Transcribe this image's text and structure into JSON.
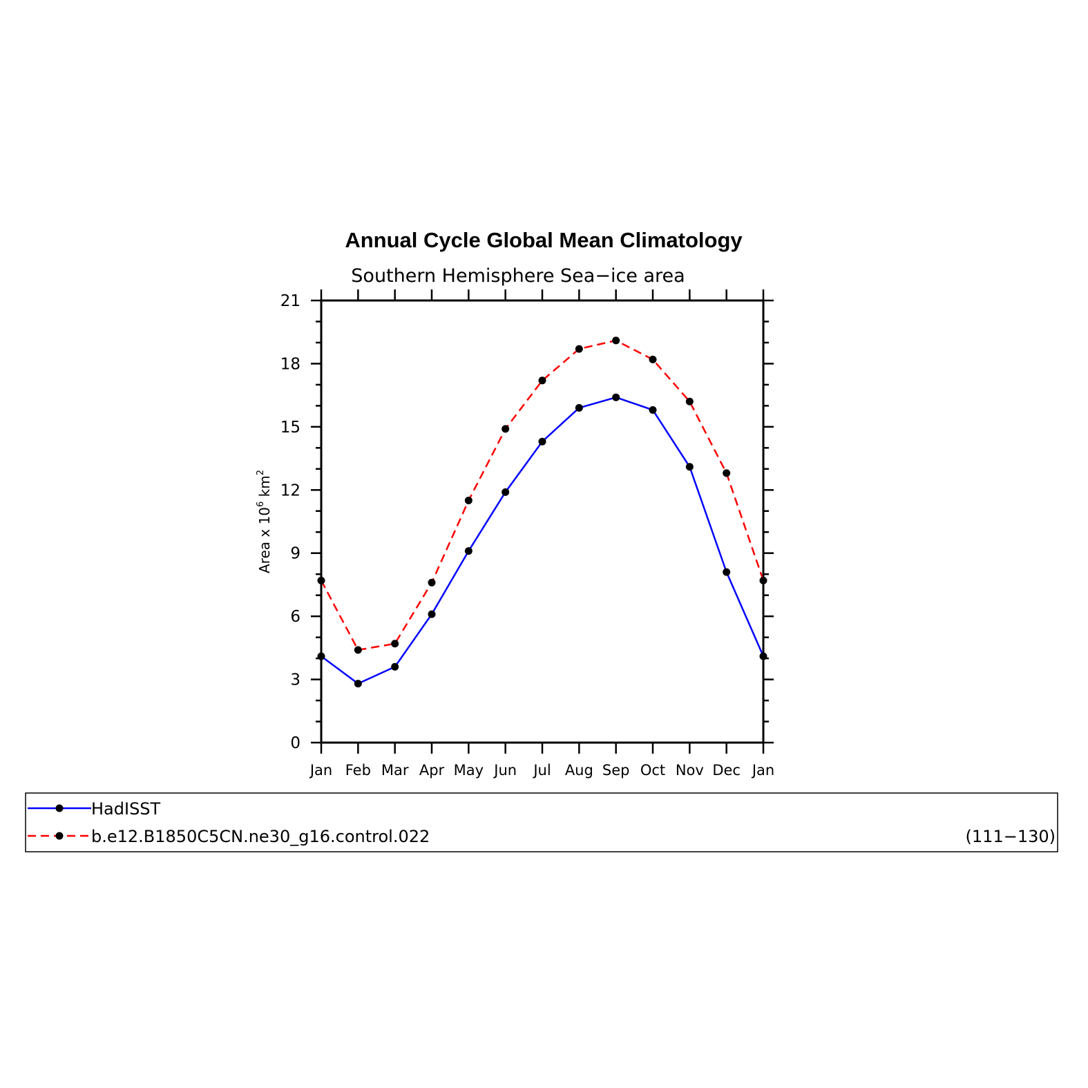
{
  "chart_data": {
    "type": "line",
    "title": "Annual Cycle Global Mean Climatology",
    "subtitle": "Southern Hemisphere Sea−ice area",
    "ylabel": {
      "prefix": "Area x 10",
      "exp1": "6",
      "mid": " km",
      "exp2": "2"
    },
    "categories": [
      "Jan",
      "Feb",
      "Mar",
      "Apr",
      "May",
      "Jun",
      "Jul",
      "Aug",
      "Sep",
      "Oct",
      "Nov",
      "Dec",
      "Jan"
    ],
    "ylim": [
      0,
      21
    ],
    "yticks": [
      0,
      3,
      6,
      9,
      12,
      15,
      18,
      21
    ],
    "yticks_minor_step": 1,
    "series": [
      {
        "name": "HadISST",
        "color": "#0000ff",
        "dashed": false,
        "values": [
          4.1,
          2.8,
          3.6,
          6.1,
          9.1,
          11.9,
          14.3,
          15.9,
          16.4,
          15.8,
          13.1,
          8.1,
          4.1
        ]
      },
      {
        "name": "b.e12.B1850C5CN.ne30_g16.control.022",
        "color": "#ff0000",
        "dashed": true,
        "values": [
          7.7,
          4.4,
          4.7,
          7.6,
          11.5,
          14.9,
          17.2,
          18.7,
          19.1,
          18.2,
          16.2,
          12.8,
          7.7
        ]
      }
    ],
    "legend": {
      "entries": [
        {
          "label": "HadISST",
          "note": ""
        },
        {
          "label": "b.e12.B1850C5CN.ne30_g16.control.022",
          "note": "(111−130)"
        }
      ],
      "placement": "bottom"
    },
    "marker_color": "#000000",
    "grid": false
  }
}
